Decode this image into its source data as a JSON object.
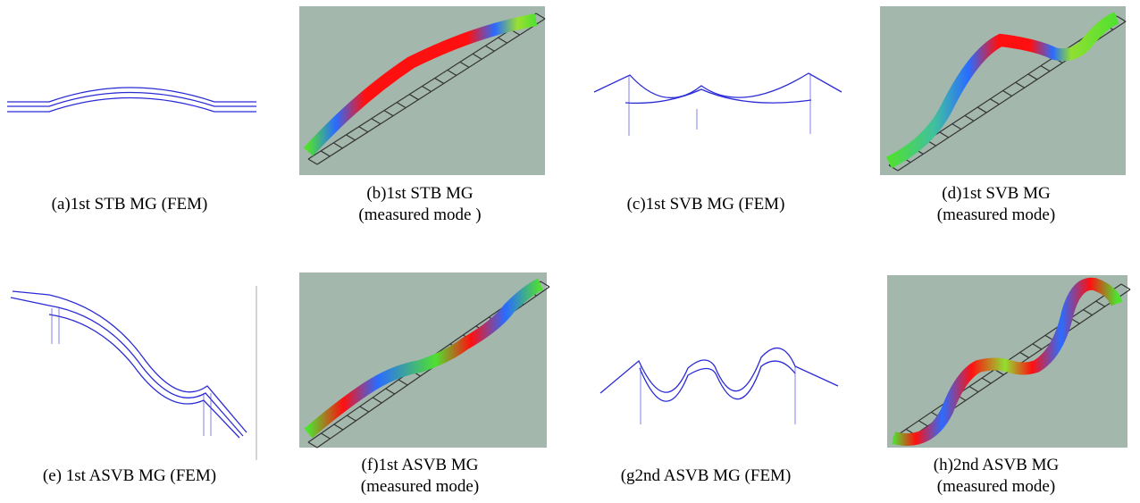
{
  "panels": [
    {
      "caption": [
        "(a)1st STB MG (FEM)"
      ]
    },
    {
      "caption": [
        "(b)1st STB MG",
        "(measured mode )"
      ]
    },
    {
      "caption": [
        "(c)1st SVB MG (FEM)"
      ]
    },
    {
      "caption": [
        "(d)1st SVB MG",
        "(measured mode)"
      ]
    },
    {
      "caption": [
        "(e) 1st ASVB MG (FEM)"
      ]
    },
    {
      "caption": [
        "(f)1st ASVB MG",
        "(measured mode)"
      ]
    },
    {
      "caption": [
        "(g2nd ASVB MG (FEM)"
      ]
    },
    {
      "caption": [
        "(h)2nd ASVB MG",
        "(measured mode)"
      ]
    }
  ]
}
